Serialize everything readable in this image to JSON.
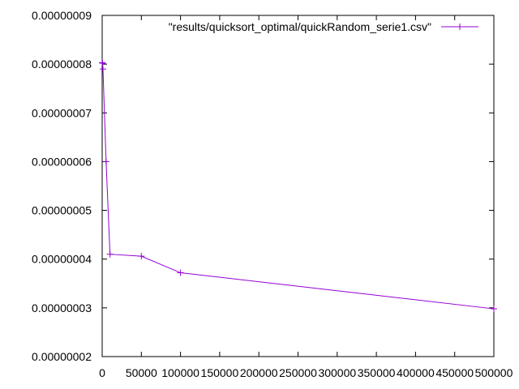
{
  "chart_data": {
    "type": "line",
    "title": "",
    "xlabel": "",
    "ylabel": "",
    "xlim": [
      0,
      500000
    ],
    "ylim": [
      2e-08,
      9e-08
    ],
    "grid": false,
    "legend_position": "top-right",
    "x_ticks": [
      "0",
      "50000",
      "100000",
      "150000",
      "200000",
      "250000",
      "300000",
      "350000",
      "400000",
      "450000",
      "500000"
    ],
    "y_ticks": [
      "0.00000002",
      "0.00000003",
      "0.00000004",
      "0.00000005",
      "0.00000006",
      "0.00000007",
      "0.00000008",
      "0.00000009"
    ],
    "series": [
      {
        "name": "\"results/quicksort_optimal/quickRandom_serie1.csv\"",
        "color": "#9400d3",
        "marker": "plus",
        "x": [
          100,
          500,
          1000,
          5000,
          10000,
          50000,
          100000,
          500000
        ],
        "y": [
          8.03e-08,
          8.02e-08,
          7.9e-08,
          6e-08,
          4.1e-08,
          4.06e-08,
          3.72e-08,
          2.98e-08
        ]
      }
    ]
  }
}
